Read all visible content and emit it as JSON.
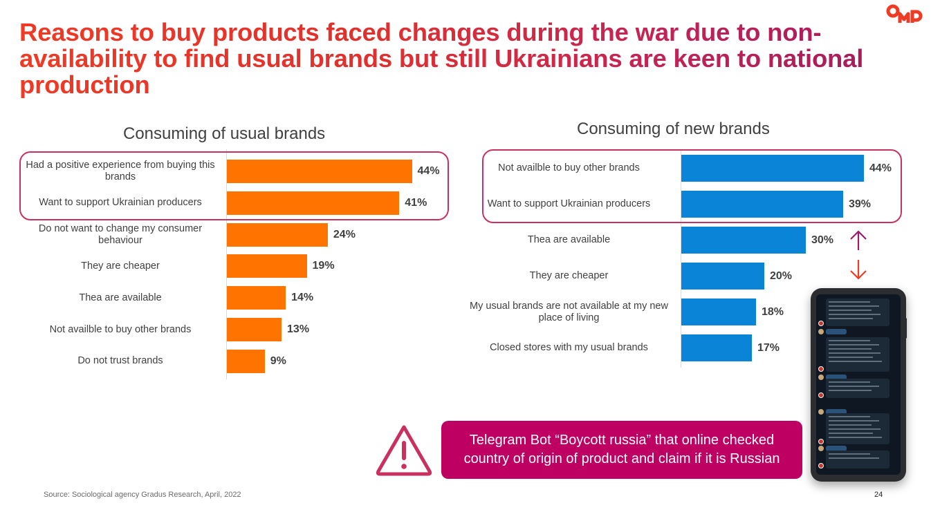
{
  "slide": {
    "title": "Reasons to buy products faced changes during the war due to non-availability to find usual brands but still Ukrainians are keen to national production",
    "logo_text": "OMD",
    "source": "Source: Sociological agency Gradus Research, April, 2022",
    "page_number": "24",
    "callout_text": "Telegram Bot “Boycott russia” that online checked country of origin of product and claim if it is Russian",
    "icons": {
      "warning": "warning-triangle-icon",
      "arrow_up": "arrow-up-icon",
      "arrow_down": "arrow-down-icon",
      "phone": "phone-screenshot"
    },
    "colors": {
      "usual_bars": "#ff7300",
      "new_bars": "#0a84d6",
      "highlight_border": "#c8305f",
      "callout_bg": "#bd0062",
      "title_start": "#ef3a24",
      "title_end": "#a3195e",
      "arrow_up": "#9c1a6a",
      "arrow_down": "#ef3a24"
    }
  },
  "chart_data": [
    {
      "type": "bar",
      "orientation": "horizontal",
      "title": "Consuming of usual brands",
      "categories": [
        "Had a positive experience from buying this brands",
        "Want to support Ukrainian producers",
        "Do not want to change my consumer behaviour",
        "They are cheaper",
        "Thea are available",
        "Not availble to buy other brands",
        "Do not trust brands"
      ],
      "values": [
        44,
        41,
        24,
        19,
        14,
        13,
        9
      ],
      "value_labels": [
        "44%",
        "41%",
        "24%",
        "19%",
        "14%",
        "13%",
        "9%"
      ],
      "unit": "%",
      "highlighted_categories": [
        0,
        1
      ],
      "xlabel": "",
      "ylabel": "",
      "xlim": [
        0,
        50
      ],
      "grid": false,
      "legend": "none"
    },
    {
      "type": "bar",
      "orientation": "horizontal",
      "title": "Consuming of new brands",
      "categories": [
        "Not availble to buy other brands",
        "Want to support Ukrainian producers",
        "Thea are available",
        "They are cheaper",
        "My usual brands are not available at my new place of living",
        "Closed stores with my usual brands"
      ],
      "values": [
        44,
        39,
        30,
        20,
        18,
        17
      ],
      "value_labels": [
        "44%",
        "39%",
        "30%",
        "20%",
        "18%",
        "17%"
      ],
      "unit": "%",
      "highlighted_categories": [
        0,
        1
      ],
      "xlabel": "",
      "ylabel": "",
      "xlim": [
        0,
        50
      ],
      "grid": false,
      "legend": "none"
    }
  ]
}
